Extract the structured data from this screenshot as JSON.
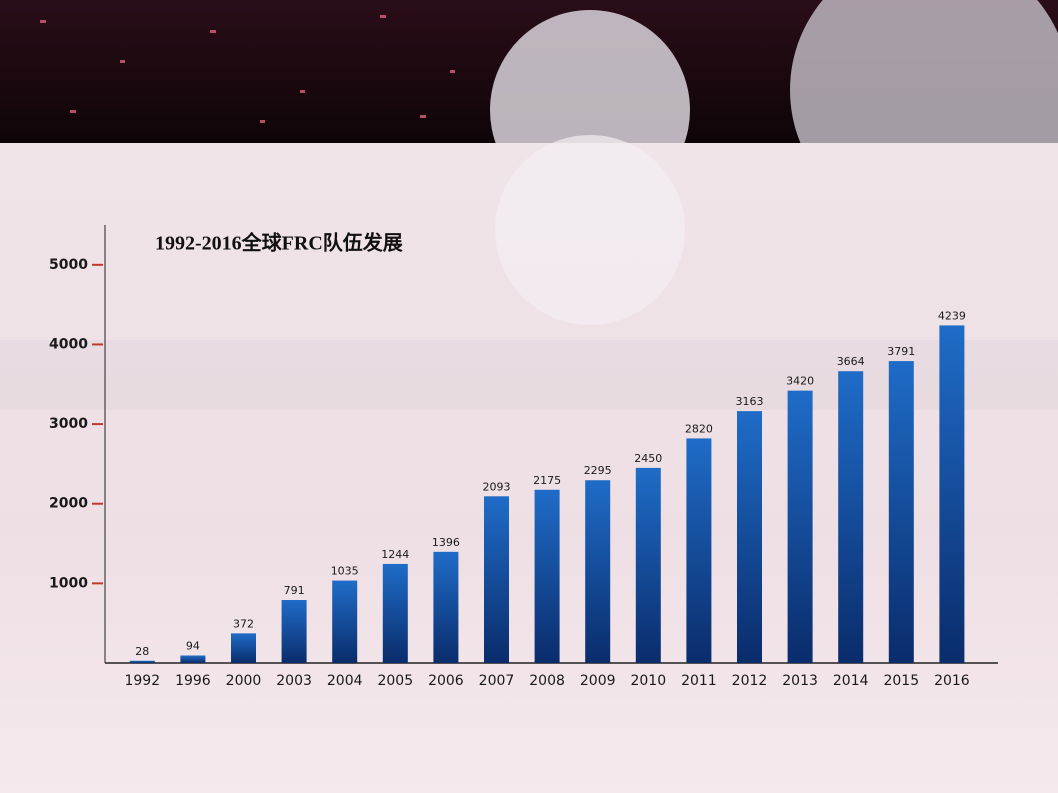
{
  "chart_data": {
    "type": "bar",
    "title": "1992-2016全球FRC队伍发展",
    "categories": [
      "1992",
      "1996",
      "2000",
      "2003",
      "2004",
      "2005",
      "2006",
      "2007",
      "2008",
      "2009",
      "2010",
      "2011",
      "2012",
      "2013",
      "2014",
      "2015",
      "2016"
    ],
    "values": [
      28,
      94,
      372,
      791,
      1035,
      1244,
      1396,
      2093,
      2175,
      2295,
      2450,
      2820,
      3163,
      3420,
      3664,
      3791,
      4239
    ],
    "color": "#0b4a9c",
    "ylim": [
      0,
      5500
    ],
    "yticks": [
      1000,
      2000,
      3000,
      4000,
      5000
    ],
    "grid": false
  }
}
